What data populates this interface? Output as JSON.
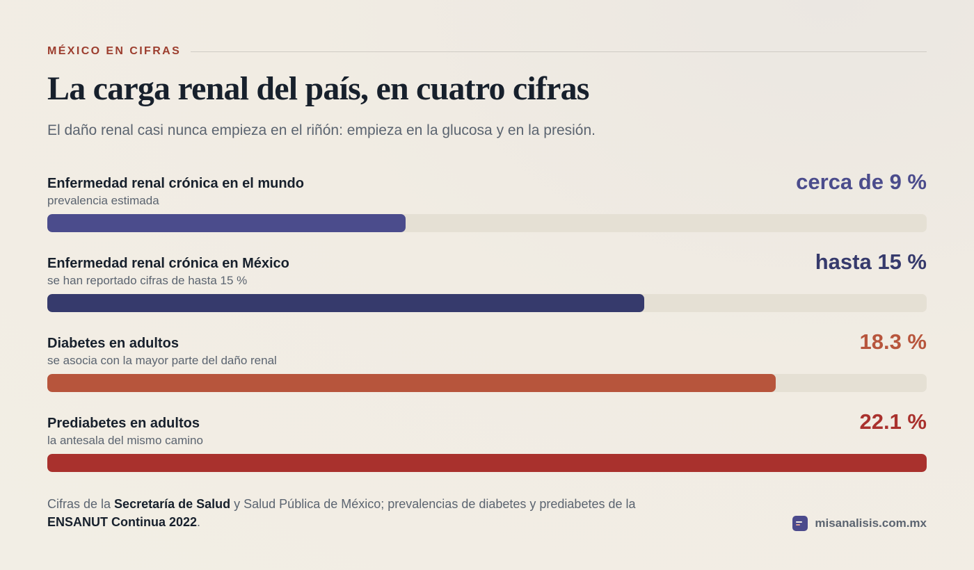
{
  "header": {
    "eyebrow": "MÉXICO EN CIFRAS",
    "title": "La carga renal del país, en cuatro cifras",
    "subtitle": "El daño renal casi nunca empieza en el riñón: empieza en la glucosa y en la presión."
  },
  "chart_data": {
    "type": "bar",
    "orientation": "horizontal",
    "xlim": [
      0,
      22.1
    ],
    "grid": false,
    "categories": [
      "Enfermedad renal crónica en el mundo",
      "Enfermedad renal crónica en México",
      "Diabetes en adultos",
      "Prediabetes en adultos"
    ],
    "values": [
      9,
      15,
      18.3,
      22.1
    ],
    "unit": "%",
    "rows": [
      {
        "label": "Enfermedad renal crónica en el mundo",
        "sublabel": "prevalencia estimada",
        "value": 9,
        "value_label": "cerca de 9 %",
        "color": "#4b4c8c",
        "value_color": "#4b4c8c"
      },
      {
        "label": "Enfermedad renal crónica en México",
        "sublabel": "se han reportado cifras de hasta 15 %",
        "value": 15,
        "value_label": "hasta 15 %",
        "color": "#363a6c",
        "value_color": "#363a6c"
      },
      {
        "label": "Diabetes en adultos",
        "sublabel": "se asocia con la mayor parte del daño renal",
        "value": 18.3,
        "value_label": "18.3 %",
        "color": "#b7553c",
        "value_color": "#b7553c"
      },
      {
        "label": "Prediabetes en adultos",
        "sublabel": "la antesala del mismo camino",
        "value": 22.1,
        "value_label": "22.1 %",
        "color": "#a9312d",
        "value_color": "#a9312d"
      }
    ]
  },
  "footer": {
    "note_part1": "Cifras de la ",
    "note_bold1": "Secretaría de Salud",
    "note_part2": " y Salud Pública de México; prevalencias de diabetes y prediabetes de la ",
    "note_bold2": "ENSANUT Continua 2022",
    "note_part3": ".",
    "brand_icon": "chart-lines-icon",
    "brand_name": "misanalisis.com.mx"
  }
}
